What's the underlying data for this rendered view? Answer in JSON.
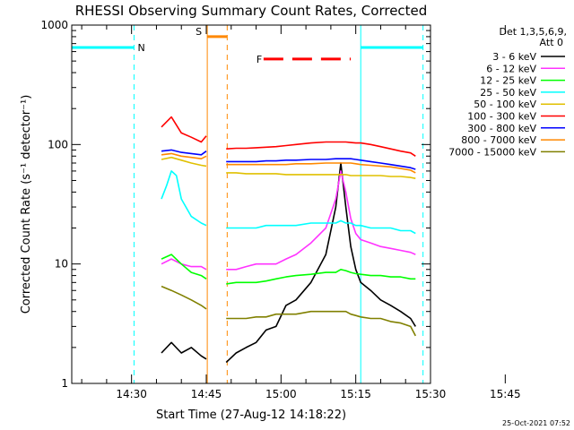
{
  "chart_data": {
    "type": "line",
    "title": "RHESSI Observing Summary Count Rates, Corrected",
    "xlabel": "Start Time (27-Aug-12 14:18:22)",
    "ylabel": "Corrected Count Rate (s⁻¹ detector⁻¹)",
    "yscale": "log",
    "ylim": [
      1,
      1000
    ],
    "xlim_minutes_after_1418": [
      0,
      72
    ],
    "x_ticks": [
      "14:30",
      "14:45",
      "15:00",
      "15:15",
      "15:30",
      "15:45"
    ],
    "y_ticks": [
      "1",
      "10",
      "100",
      "1000"
    ],
    "legend_header": [
      "Det 1,3,5,6,9,",
      "Att 0"
    ],
    "legend_position": "right",
    "footer_stamp": "25-Oct-2021 07:52",
    "series": [
      {
        "name": "3 - 6 keV",
        "color": "#000000",
        "x": [
          18,
          20,
          22,
          24,
          26,
          27,
          31,
          33,
          35,
          37,
          39,
          41,
          43,
          45,
          48,
          51,
          53,
          54,
          55,
          56,
          57,
          58,
          60,
          62,
          64,
          66,
          68,
          69
        ],
        "y": [
          1.8,
          2.2,
          1.8,
          2.0,
          1.7,
          1.6,
          1.5,
          1.8,
          2.0,
          2.2,
          2.8,
          3.0,
          4.5,
          5.0,
          7.0,
          12,
          30,
          70,
          30,
          14,
          9,
          7,
          6,
          5,
          4.5,
          4,
          3.5,
          3.0
        ]
      },
      {
        "name": "6 - 12 keV",
        "color": "#ff33ff",
        "x": [
          18,
          20,
          22,
          24,
          26,
          27,
          31,
          33,
          35,
          37,
          39,
          41,
          43,
          45,
          48,
          51,
          53,
          54,
          55,
          56,
          57,
          58,
          60,
          62,
          64,
          66,
          68,
          69
        ],
        "y": [
          10,
          11,
          10,
          9.5,
          9.5,
          9.0,
          9.0,
          9.0,
          9.5,
          10,
          10,
          10,
          11,
          12,
          15,
          20,
          35,
          60,
          40,
          24,
          18,
          16,
          15,
          14,
          13.5,
          13,
          12.5,
          12
        ]
      },
      {
        "name": "12 - 25 keV",
        "color": "#00ff00",
        "x": [
          18,
          20,
          22,
          24,
          26,
          27,
          31,
          33,
          35,
          37,
          39,
          41,
          43,
          45,
          48,
          51,
          53,
          54,
          55,
          56,
          57,
          58,
          60,
          62,
          64,
          66,
          68,
          69
        ],
        "y": [
          11,
          12,
          10,
          8.5,
          8,
          7.5,
          6.8,
          7,
          7,
          7,
          7.2,
          7.5,
          7.8,
          8,
          8.2,
          8.5,
          8.5,
          9,
          8.8,
          8.5,
          8.3,
          8.2,
          8,
          8,
          7.8,
          7.8,
          7.5,
          7.5
        ]
      },
      {
        "name": "25 - 50 keV",
        "color": "#00ffff",
        "x": [
          18,
          19,
          20,
          21,
          22,
          24,
          26,
          27,
          31,
          33,
          35,
          37,
          39,
          41,
          43,
          45,
          48,
          51,
          53,
          54,
          55,
          56,
          57,
          58,
          60,
          62,
          64,
          66,
          68,
          69
        ],
        "y": [
          35,
          45,
          60,
          55,
          35,
          25,
          22,
          21,
          20,
          20,
          20,
          20,
          21,
          21,
          21,
          21,
          22,
          22,
          22,
          23,
          22,
          22,
          21,
          21,
          20,
          20,
          20,
          19,
          19,
          18
        ]
      },
      {
        "name": "50 - 100 keV",
        "color": "#e0c000",
        "x": [
          18,
          20,
          22,
          24,
          26,
          27,
          31,
          33,
          35,
          37,
          39,
          41,
          43,
          45,
          48,
          51,
          53,
          54,
          55,
          56,
          57,
          58,
          60,
          62,
          64,
          66,
          68,
          69
        ],
        "y": [
          75,
          78,
          74,
          70,
          67,
          66,
          58,
          58,
          57,
          57,
          57,
          57,
          56,
          56,
          56,
          56,
          56,
          56,
          56,
          55,
          55,
          55,
          55,
          55,
          54,
          54,
          53,
          52
        ]
      },
      {
        "name": "100 - 300 keV",
        "color": "#ff0000",
        "x": [
          18,
          20,
          22,
          24,
          26,
          27,
          31,
          33,
          35,
          37,
          39,
          41,
          43,
          45,
          48,
          51,
          53,
          54,
          55,
          56,
          57,
          58,
          60,
          62,
          64,
          66,
          68,
          69
        ],
        "y": [
          140,
          170,
          125,
          115,
          105,
          118,
          92,
          93,
          93,
          94,
          95,
          96,
          98,
          100,
          103,
          105,
          105,
          105,
          105,
          104,
          103,
          103,
          100,
          96,
          92,
          88,
          85,
          80
        ]
      },
      {
        "name": "300 - 800 keV",
        "color": "#0000ff",
        "x": [
          18,
          20,
          22,
          24,
          26,
          27,
          31,
          33,
          35,
          37,
          39,
          41,
          43,
          45,
          48,
          51,
          53,
          54,
          55,
          56,
          57,
          58,
          60,
          62,
          64,
          66,
          68,
          69
        ],
        "y": [
          88,
          90,
          86,
          84,
          82,
          88,
          72,
          72,
          72,
          72,
          73,
          73,
          74,
          74,
          75,
          75,
          76,
          76,
          76,
          76,
          75,
          74,
          72,
          70,
          68,
          66,
          64,
          62
        ]
      },
      {
        "name": "800 - 7000 keV",
        "color": "#ff8800",
        "x": [
          18,
          20,
          22,
          24,
          26,
          27,
          31,
          33,
          35,
          37,
          39,
          41,
          43,
          45,
          48,
          51,
          53,
          54,
          55,
          56,
          57,
          58,
          60,
          62,
          64,
          66,
          68,
          69
        ],
        "y": [
          82,
          84,
          80,
          78,
          76,
          80,
          68,
          68,
          68,
          68,
          68,
          68,
          68,
          69,
          69,
          70,
          70,
          70,
          70,
          70,
          69,
          68,
          67,
          66,
          65,
          63,
          61,
          58
        ]
      },
      {
        "name": "7000 - 15000 keV",
        "color": "#808000",
        "x": [
          18,
          20,
          22,
          24,
          26,
          27,
          31,
          33,
          35,
          37,
          39,
          41,
          43,
          45,
          48,
          51,
          53,
          54,
          55,
          56,
          57,
          58,
          60,
          62,
          64,
          66,
          68,
          69
        ],
        "y": [
          6.5,
          6.0,
          5.5,
          5.0,
          4.5,
          4.2,
          3.5,
          3.5,
          3.5,
          3.6,
          3.6,
          3.8,
          3.8,
          3.8,
          4.0,
          4.0,
          4.0,
          4.0,
          4.0,
          3.8,
          3.7,
          3.6,
          3.5,
          3.5,
          3.3,
          3.2,
          3.0,
          2.5
        ]
      }
    ],
    "data_gaps": [
      [
        27.5,
        30.5
      ]
    ],
    "annotations": [
      {
        "label": "N",
        "color": "#00ffff",
        "start": 0,
        "end": 12.5,
        "level": 650
      },
      {
        "label": "S",
        "color": "#ff8800",
        "start": 27.2,
        "end": 31.2,
        "level": 800
      },
      {
        "label": "F",
        "color": "#ff0000",
        "start": 38.5,
        "end": 56,
        "level": 520
      },
      {
        "label": "",
        "color": "#00ffff",
        "start": 58,
        "end": 70.5,
        "level": 650
      }
    ],
    "vertical_markers": [
      {
        "x": 12.5,
        "color": "#00ffff",
        "style": "dashed"
      },
      {
        "x": 27.2,
        "color": "#ff8800",
        "style": "solid"
      },
      {
        "x": 31.2,
        "color": "#ff8800",
        "style": "dashed"
      },
      {
        "x": 58,
        "color": "#00ffff",
        "style": "solid"
      },
      {
        "x": 70.5,
        "color": "#00ffff",
        "style": "dashed"
      }
    ]
  }
}
